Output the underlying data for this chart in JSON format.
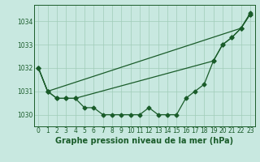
{
  "title": "Graphe pression niveau de la mer (hPa)",
  "bg_color": "#c8e8e0",
  "grid_color": "#a0ccb8",
  "line_color": "#1a5c2a",
  "x_labels": [
    "0",
    "1",
    "2",
    "3",
    "4",
    "5",
    "6",
    "7",
    "8",
    "9",
    "10",
    "11",
    "12",
    "13",
    "14",
    "15",
    "16",
    "17",
    "18",
    "19",
    "20",
    "21",
    "22",
    "23"
  ],
  "line1": [
    1032.0,
    1031.0,
    null,
    null,
    null,
    null,
    null,
    null,
    null,
    null,
    null,
    null,
    null,
    null,
    null,
    null,
    null,
    null,
    null,
    null,
    null,
    null,
    1033.7,
    1034.35
  ],
  "line2": [
    1032.0,
    1031.0,
    1030.7,
    1030.7,
    1030.7,
    null,
    null,
    null,
    null,
    null,
    null,
    null,
    null,
    null,
    null,
    null,
    null,
    null,
    null,
    1032.3,
    1033.0,
    1033.3,
    1033.7,
    1034.3
  ],
  "line3": [
    1032.0,
    1031.0,
    1030.7,
    1030.7,
    1030.7,
    1030.3,
    1030.3,
    1030.0,
    1030.0,
    1030.0,
    1030.0,
    1030.0,
    1030.3,
    1030.0,
    1030.0,
    1030.0,
    1030.7,
    1031.0,
    1031.3,
    1032.3,
    1033.0,
    1033.3,
    1033.7,
    1034.3
  ],
  "ylim": [
    1029.5,
    1034.7
  ],
  "yticks": [
    1030,
    1031,
    1032,
    1033,
    1034
  ],
  "title_fontsize": 7,
  "tick_fontsize": 5.5
}
